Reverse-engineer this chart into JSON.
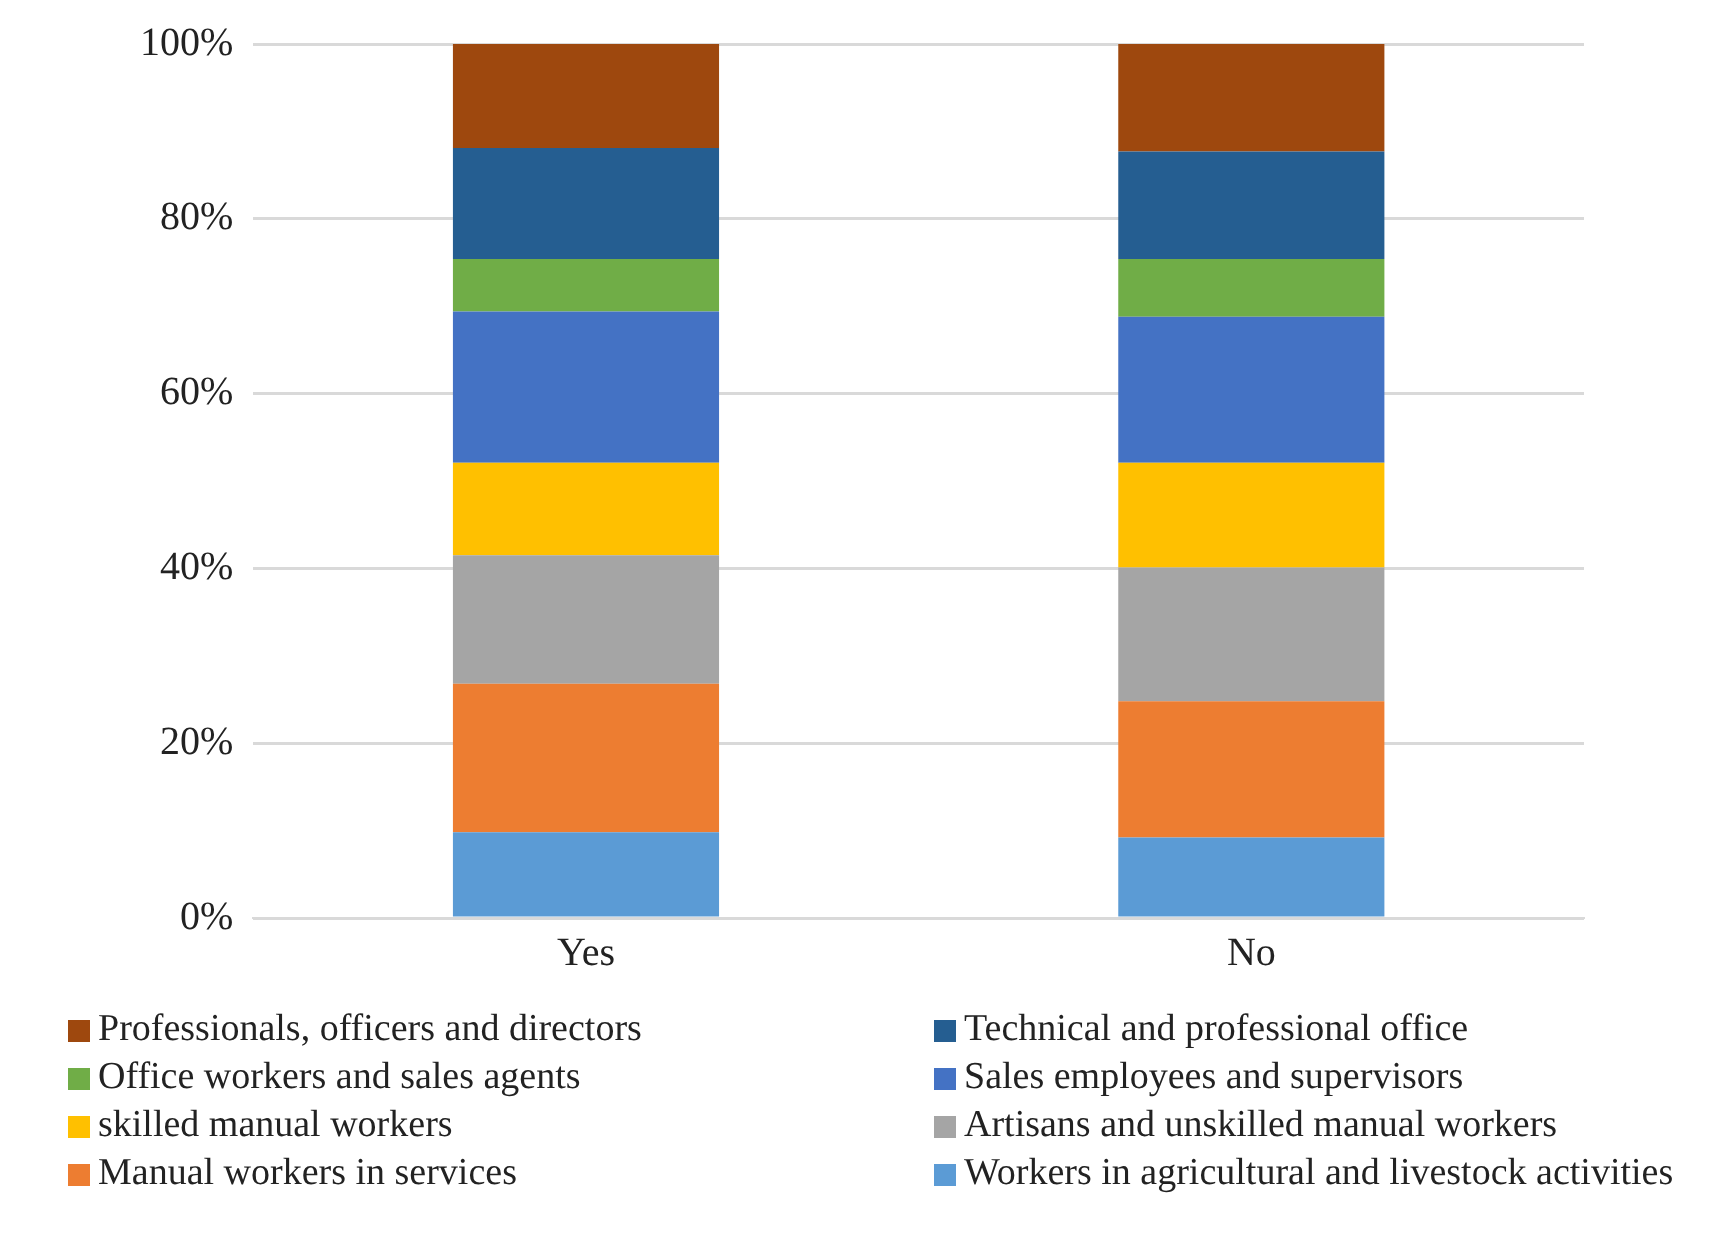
{
  "chart_data": {
    "type": "bar",
    "stacked": true,
    "categories": [
      "Yes",
      "No"
    ],
    "ylim": [
      0,
      100
    ],
    "yticks": [
      {
        "value": 0,
        "label": "0%"
      },
      {
        "value": 20,
        "label": "20%"
      },
      {
        "value": 40,
        "label": "40%"
      },
      {
        "value": 60,
        "label": "60%"
      },
      {
        "value": 80,
        "label": "80%"
      },
      {
        "value": 100,
        "label": "100%"
      }
    ],
    "grid": "y",
    "legend": "bottom",
    "series": [
      {
        "name": "Workers in agricultural and livestock activities",
        "color": "#5b9bd5",
        "values": [
          9.8,
          9.2
        ]
      },
      {
        "name": "Manual workers in services",
        "color": "#ed7d31",
        "values": [
          17.0,
          15.6
        ]
      },
      {
        "name": "Artisans and unskilled manual workers",
        "color": "#a5a5a5",
        "values": [
          14.7,
          15.3
        ]
      },
      {
        "name": "skilled manual workers",
        "color": "#ffc000",
        "values": [
          10.6,
          12.0
        ]
      },
      {
        "name": "Sales employees and supervisors",
        "color": "#4472c4",
        "values": [
          17.3,
          16.7
        ]
      },
      {
        "name": "Office workers and sales agents",
        "color": "#70ad47",
        "values": [
          6.0,
          6.6
        ]
      },
      {
        "name": "Technical and professional office",
        "color": "#255e91",
        "values": [
          12.7,
          12.3
        ]
      },
      {
        "name": "Professionals, officers and directors",
        "color": "#9e480e",
        "values": [
          11.9,
          12.3
        ]
      }
    ]
  }
}
